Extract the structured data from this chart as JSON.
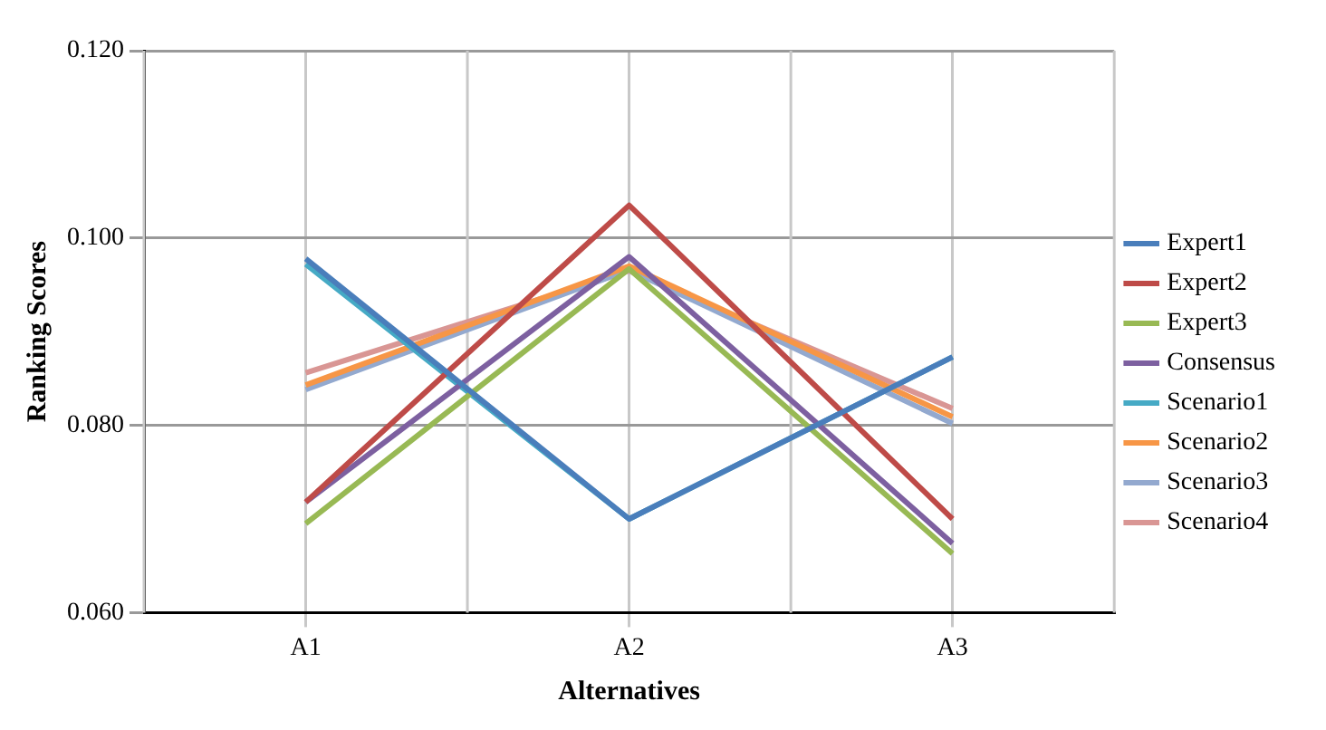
{
  "chart_data": {
    "type": "line",
    "xlabel": "Alternatives",
    "ylabel": "Ranking Scores",
    "categories": [
      "A1",
      "A2",
      "A3"
    ],
    "series": [
      {
        "name": "Expert1",
        "color": "#4a7ebb",
        "values": [
          0.0978,
          0.07,
          0.0873
        ]
      },
      {
        "name": "Expert2",
        "color": "#be4b48",
        "values": [
          0.0718,
          0.1035,
          0.07
        ]
      },
      {
        "name": "Expert3",
        "color": "#98b954",
        "values": [
          0.0695,
          0.0967,
          0.0663
        ]
      },
      {
        "name": "Consensus",
        "color": "#7d60a0",
        "values": [
          0.0718,
          0.098,
          0.0674
        ]
      },
      {
        "name": "Scenario1",
        "color": "#46aac5",
        "values": [
          0.0972,
          0.07,
          0.0873
        ]
      },
      {
        "name": "Scenario2",
        "color": "#f79646",
        "values": [
          0.0843,
          0.097,
          0.0809
        ]
      },
      {
        "name": "Scenario3",
        "color": "#93a9cf",
        "values": [
          0.0838,
          0.0966,
          0.0802
        ]
      },
      {
        "name": "Scenario4",
        "color": "#d99694",
        "values": [
          0.0856,
          0.0965,
          0.0818
        ]
      }
    ],
    "ylim": [
      0.06,
      0.12
    ],
    "yticks": [
      {
        "value": 0.06,
        "label": "0.060"
      },
      {
        "value": 0.08,
        "label": "0.080"
      },
      {
        "value": 0.1,
        "label": "0.100"
      },
      {
        "value": 0.12,
        "label": "0.120"
      }
    ],
    "grid": true,
    "legend": "right",
    "marker": "none",
    "line_style": "solid"
  }
}
